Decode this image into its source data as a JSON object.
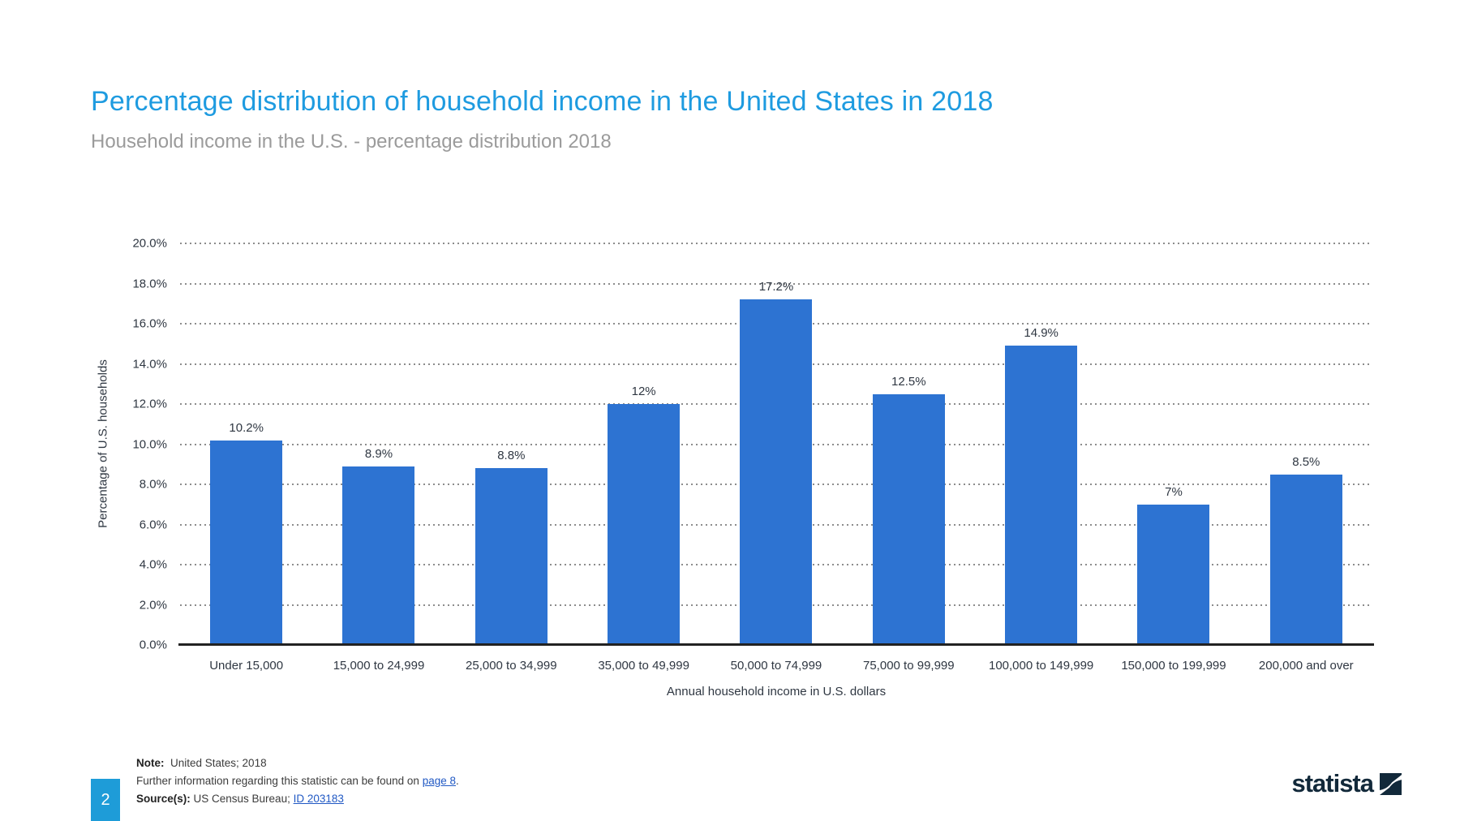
{
  "page": {
    "title": "Percentage distribution of household income in the United States in 2018",
    "subtitle": "Household income in the U.S. - percentage distribution 2018",
    "page_number": "2",
    "brand": "statista"
  },
  "chart_data": {
    "type": "bar",
    "title": "Percentage distribution of household income in the United States in 2018",
    "categories": [
      "Under 15,000",
      "15,000 to 24,999",
      "25,000 to 34,999",
      "35,000 to 49,999",
      "50,000 to 74,999",
      "75,000 to 99,999",
      "100,000 to 149,999",
      "150,000 to 199,999",
      "200,000 and over"
    ],
    "values": [
      10.2,
      8.9,
      8.8,
      12,
      17.2,
      12.5,
      14.9,
      7,
      8.5
    ],
    "value_labels": [
      "10.2%",
      "8.9%",
      "8.8%",
      "12%",
      "17.2%",
      "12.5%",
      "14.9%",
      "7%",
      "8.5%"
    ],
    "xlabel": "Annual household income in U.S. dollars",
    "ylabel": "Percentage of U.S. households",
    "ylim": [
      0,
      20
    ],
    "y_ticks": [
      "20.0%",
      "18.0%",
      "16.0%",
      "14.0%",
      "12.0%",
      "10.0%",
      "8.0%",
      "6.0%",
      "4.0%",
      "2.0%",
      "0.0%"
    ],
    "grid": "horizontal-dotted",
    "legend": "none"
  },
  "footer": {
    "note_label": "Note:",
    "note_text": "  United States; 2018",
    "further_prefix": "Further information regarding this statistic can be found on ",
    "further_link": "page 8",
    "further_suffix": ".",
    "source_label": "Source(s):",
    "source_text": " US Census Bureau; ",
    "source_link": "ID 203183"
  },
  "colors": {
    "title": "#1E9BE0",
    "subtitle": "#9B9B9B",
    "bar": "#2D73D2",
    "axis_text": "#2F3742",
    "gridline": "#8C8C8C",
    "baseline": "#222222",
    "page_box": "#1E9CD8",
    "link": "#2159C4",
    "logo": "#12293A"
  }
}
